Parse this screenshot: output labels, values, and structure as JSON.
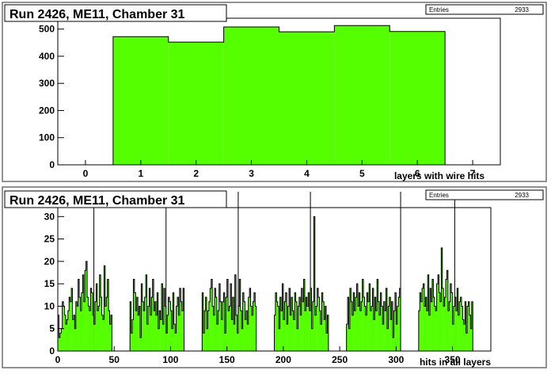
{
  "colors": {
    "fill": "#55ff00",
    "line": "#000000",
    "frame": "#6e6e6e",
    "background": "#ffffff"
  },
  "chart_data": [
    {
      "type": "bar",
      "title": "Run 2426, ME11, Chamber 31",
      "xlabel": "layers with wire hits",
      "ylabel": "",
      "stats": {
        "label": "Entries",
        "value": "2933"
      },
      "xlim": [
        -0.5,
        7.5
      ],
      "ylim": [
        0,
        540
      ],
      "xticks": [
        "0",
        "1",
        "2",
        "3",
        "4",
        "5",
        "6",
        "7"
      ],
      "yticks": [
        "0",
        "100",
        "200",
        "300",
        "400",
        "500"
      ],
      "categories": [
        1,
        2,
        3,
        4,
        5,
        6
      ],
      "values": [
        472,
        452,
        508,
        490,
        513,
        491
      ],
      "grid": false,
      "legend": "none"
    },
    {
      "type": "bar",
      "title": "Run 2426, ME11, Chamber 31",
      "xlabel": "hits in all layers",
      "ylabel": "",
      "stats": {
        "label": "Entries",
        "value": "2933"
      },
      "xlim": [
        0,
        384
      ],
      "ylim": [
        0,
        32
      ],
      "xticks": [
        "0",
        "50",
        "100",
        "150",
        "200",
        "250",
        "300",
        "350"
      ],
      "yticks": [
        "0",
        "5",
        "10",
        "15",
        "20",
        "25",
        "30"
      ],
      "bin_width": 1,
      "separators": [
        32,
        96,
        160,
        224,
        304,
        352
      ],
      "groups": [
        {
          "start": 0,
          "values": [
            8,
            3,
            4,
            5,
            11,
            10,
            8,
            6,
            7,
            9,
            12,
            11,
            14,
            7,
            8,
            5,
            11,
            10,
            16,
            12,
            9,
            13,
            17,
            11,
            18,
            20,
            12,
            10,
            9,
            14,
            13,
            8,
            6,
            11,
            15,
            9,
            10,
            17,
            12,
            8,
            7,
            19,
            10,
            12,
            16,
            9,
            6,
            8
          ]
        },
        {
          "start": 64,
          "values": [
            11,
            4,
            7,
            16,
            13,
            9,
            12,
            8,
            10,
            3,
            15,
            11,
            9,
            12,
            17,
            6,
            10,
            14,
            8,
            12,
            16,
            9,
            11,
            8,
            13,
            5,
            9,
            7,
            15,
            6,
            14,
            10,
            4,
            8,
            12,
            11,
            9,
            5,
            13,
            6,
            4,
            10,
            12,
            8,
            14,
            11,
            9,
            14
          ]
        },
        {
          "start": 128,
          "values": [
            13,
            4,
            9,
            12,
            5,
            9,
            11,
            14,
            16,
            10,
            8,
            14,
            12,
            6,
            9,
            15,
            11,
            7,
            11,
            13,
            4,
            12,
            16,
            9,
            10,
            15,
            7,
            12,
            6,
            17,
            8,
            4,
            10,
            16,
            9,
            5,
            13,
            11,
            7,
            9,
            6,
            12,
            14,
            10,
            8,
            11,
            13,
            10
          ]
        },
        {
          "start": 192,
          "values": [
            8,
            13,
            11,
            10,
            5,
            12,
            9,
            15,
            7,
            11,
            13,
            6,
            10,
            14,
            8,
            12,
            9,
            7,
            13,
            11,
            5,
            10,
            12,
            8,
            14,
            11,
            16,
            9,
            12,
            10,
            13,
            9,
            14,
            5,
            11,
            30,
            8,
            10,
            14,
            12,
            9,
            6,
            13,
            11,
            7,
            10,
            4,
            8
          ]
        },
        {
          "start": 256,
          "values": [
            6,
            12,
            5,
            14,
            11,
            8,
            13,
            9,
            12,
            15,
            10,
            13,
            9,
            11,
            16,
            12,
            10,
            8,
            13,
            11,
            15,
            9,
            10,
            14,
            7,
            12,
            9,
            16,
            11,
            8,
            13,
            10,
            6,
            11,
            9,
            14,
            5,
            10,
            12,
            7,
            11,
            3,
            9,
            13,
            6,
            10,
            12,
            14
          ]
        },
        {
          "start": 320,
          "values": [
            9,
            13,
            11,
            14,
            15,
            10,
            12,
            9,
            17,
            8,
            14,
            11,
            16,
            12,
            10,
            9,
            15,
            17,
            13,
            11,
            23,
            14,
            10,
            12,
            16,
            18,
            9,
            11,
            15,
            13,
            6,
            10,
            12,
            9,
            14,
            8,
            11,
            12,
            10,
            7,
            6,
            11,
            4,
            10,
            11,
            8,
            5,
            11
          ]
        }
      ],
      "grid": false,
      "legend": "none"
    }
  ]
}
